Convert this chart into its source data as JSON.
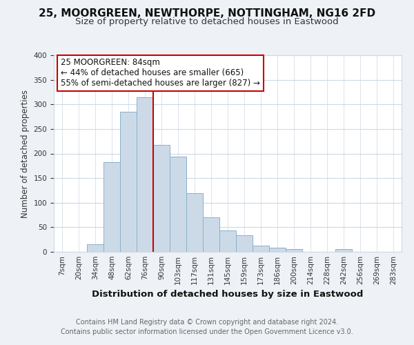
{
  "title": "25, MOORGREEN, NEWTHORPE, NOTTINGHAM, NG16 2FD",
  "subtitle": "Size of property relative to detached houses in Eastwood",
  "xlabel": "Distribution of detached houses by size in Eastwood",
  "ylabel": "Number of detached properties",
  "bar_labels": [
    "7sqm",
    "20sqm",
    "34sqm",
    "48sqm",
    "62sqm",
    "76sqm",
    "90sqm",
    "103sqm",
    "117sqm",
    "131sqm",
    "145sqm",
    "159sqm",
    "173sqm",
    "186sqm",
    "200sqm",
    "214sqm",
    "228sqm",
    "242sqm",
    "256sqm",
    "269sqm",
    "283sqm"
  ],
  "bar_values": [
    0,
    0,
    16,
    183,
    285,
    315,
    217,
    194,
    119,
    70,
    44,
    33,
    13,
    8,
    6,
    0,
    0,
    5,
    0,
    0,
    0
  ],
  "bar_color": "#ccdae8",
  "bar_edge_color": "#8aafc8",
  "vline_x": 5.5,
  "vline_color": "#cc0000",
  "annotation_text": "25 MOORGREEN: 84sqm\n← 44% of detached houses are smaller (665)\n55% of semi-detached houses are larger (827) →",
  "annotation_box_facecolor": "#ffffff",
  "annotation_box_edgecolor": "#cc0000",
  "ylim": [
    0,
    400
  ],
  "yticks": [
    0,
    50,
    100,
    150,
    200,
    250,
    300,
    350,
    400
  ],
  "fig_facecolor": "#eef2f6",
  "axes_facecolor": "#ffffff",
  "grid_color": "#ccd8e4",
  "footer_line1": "Contains HM Land Registry data © Crown copyright and database right 2024.",
  "footer_line2": "Contains public sector information licensed under the Open Government Licence v3.0.",
  "title_fontsize": 11,
  "subtitle_fontsize": 9.5,
  "xlabel_fontsize": 9.5,
  "ylabel_fontsize": 8.5,
  "tick_fontsize": 7.5,
  "footer_fontsize": 7,
  "annotation_fontsize": 8.5
}
